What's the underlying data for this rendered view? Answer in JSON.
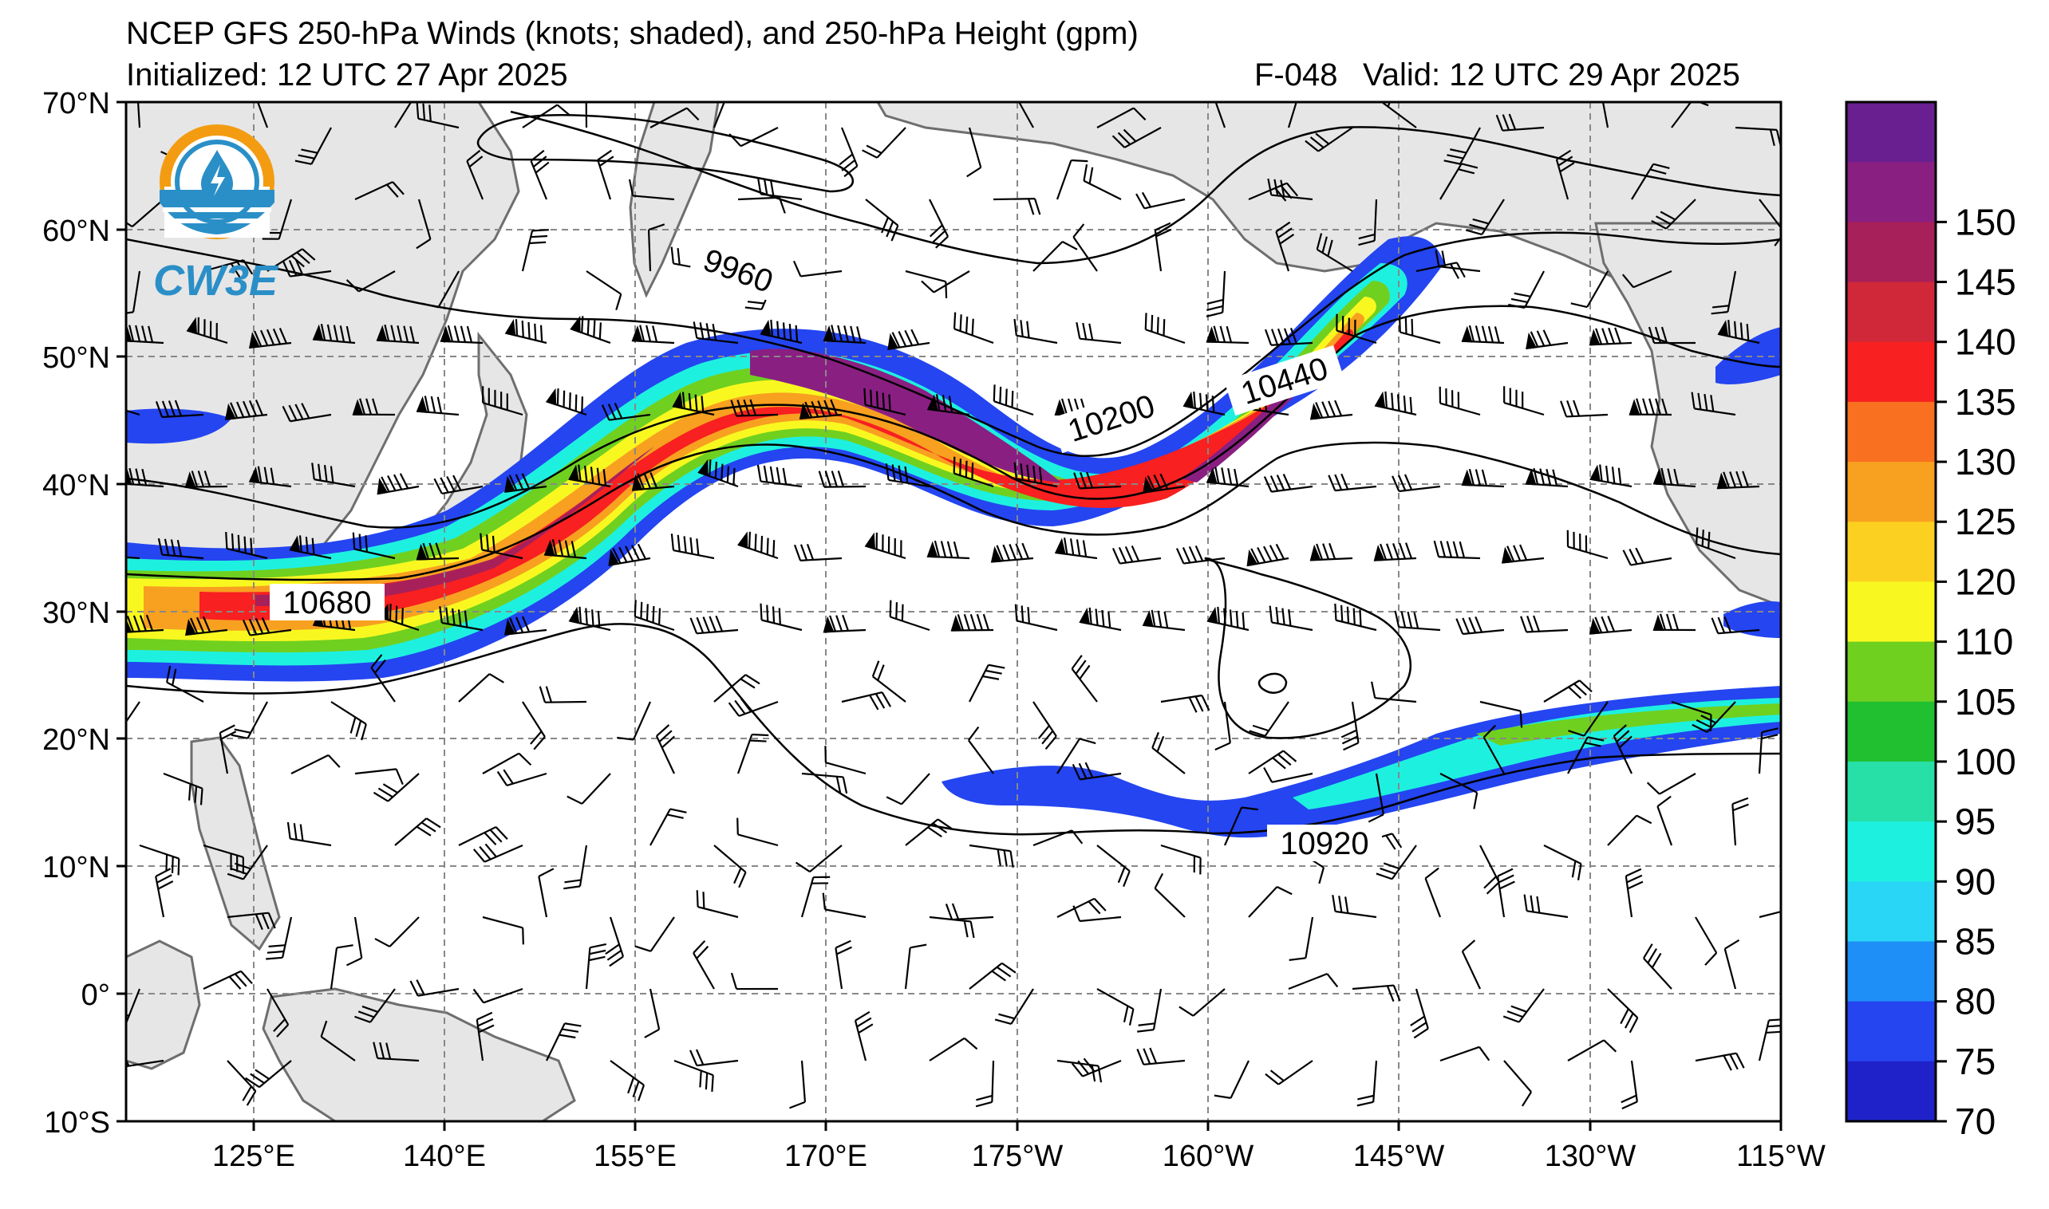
{
  "header": {
    "title": "NCEP GFS 250-hPa Winds (knots; shaded), and 250-hPa Height (gpm)",
    "initialized": "Initialized: 12 UTC 27 Apr 2025",
    "forecast_hour": "F-048",
    "valid": "Valid: 12 UTC 29 Apr 2025"
  },
  "logo": {
    "text": "CW3E",
    "icon": "water-drop-icon",
    "ring_colors": [
      "#f39c12",
      "#2b8fc7"
    ]
  },
  "axes": {
    "lat_labels": [
      "70°N",
      "60°N",
      "50°N",
      "40°N",
      "30°N",
      "20°N",
      "10°N",
      "0°",
      "10°S"
    ],
    "lon_labels": [
      "125°E",
      "140°E",
      "155°E",
      "170°E",
      "175°W",
      "160°W",
      "145°W",
      "130°W",
      "115°W"
    ],
    "lat_range": [
      -10,
      70
    ],
    "lon_range_deg_east": [
      115,
      245
    ],
    "grid": "dashed"
  },
  "contour_labels": [
    "9960",
    "10200",
    "10440",
    "10680",
    "10920"
  ],
  "colorbar": {
    "ticks": [
      "70",
      "75",
      "80",
      "85",
      "90",
      "95",
      "100",
      "105",
      "110",
      "120",
      "125",
      "130",
      "135",
      "140",
      "145",
      "150"
    ],
    "colors": [
      "#1f22c8",
      "#2445f0",
      "#1e8ff7",
      "#2ad6f5",
      "#1ef0e0",
      "#27e0a8",
      "#21c030",
      "#70d020",
      "#f8f820",
      "#fcd020",
      "#f8a020",
      "#f87020",
      "#f82020",
      "#d02838",
      "#a8205a",
      "#8a1f82",
      "#6a1f90"
    ]
  },
  "land_color": "#e6e6e6",
  "coast_color": "#6e6e6e"
}
